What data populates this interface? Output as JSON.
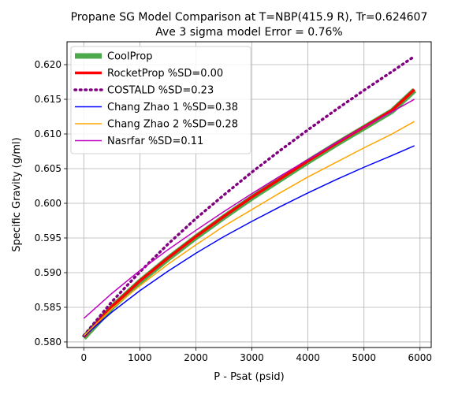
{
  "chart_data": {
    "type": "line",
    "title_line1": "Propane SG Model Comparison at T=NBP(415.9 R), Tr=0.624607",
    "title_line2": "Ave 3 sigma model Error = 0.76%",
    "xlabel": "P - Psat (psid)",
    "ylabel": "Specific Gravity (g/ml)",
    "xlim": [
      -300,
      6200
    ],
    "ylim": [
      0.5792,
      0.6233
    ],
    "xticks": [
      0,
      1000,
      2000,
      3000,
      4000,
      5000,
      6000
    ],
    "yticks": [
      0.58,
      0.585,
      0.59,
      0.595,
      0.6,
      0.605,
      0.61,
      0.615,
      0.62
    ],
    "ytick_labels": [
      "0.580",
      "0.585",
      "0.590",
      "0.595",
      "0.600",
      "0.605",
      "0.610",
      "0.615",
      "0.620"
    ],
    "grid": true,
    "legend_position": "top-left",
    "x": [
      0,
      500,
      1000,
      1500,
      2000,
      2500,
      3000,
      3500,
      4000,
      4500,
      5000,
      5500,
      5900
    ],
    "series": [
      {
        "name": "CoolProp",
        "color": "#4caa4c",
        "style": "solid-thick",
        "values": [
          0.5806,
          0.585,
          0.5887,
          0.592,
          0.5951,
          0.598,
          0.6008,
          0.6034,
          0.606,
          0.6085,
          0.6109,
          0.6133,
          0.6163
        ]
      },
      {
        "name": "RocketProp %SD=0.00",
        "color": "#ff0000",
        "style": "solid-medium",
        "values": [
          0.5807,
          0.5851,
          0.5888,
          0.5921,
          0.5952,
          0.5981,
          0.6009,
          0.6035,
          0.6061,
          0.6086,
          0.611,
          0.6134,
          0.6164
        ]
      },
      {
        "name": "COSTALD %SD=0.23",
        "color": "#800080",
        "style": "dotted",
        "values": [
          0.5809,
          0.5858,
          0.5901,
          0.5941,
          0.5978,
          0.6012,
          0.6045,
          0.6076,
          0.6106,
          0.6135,
          0.6163,
          0.619,
          0.6212
        ]
      },
      {
        "name": "Chang Zhao 1 %SD=0.38",
        "color": "#0000ff",
        "style": "solid",
        "values": [
          0.5808,
          0.5843,
          0.5874,
          0.5902,
          0.5928,
          0.5952,
          0.5974,
          0.5995,
          0.6015,
          0.6034,
          0.6052,
          0.6069,
          0.6083
        ]
      },
      {
        "name": "Chang Zhao 2 %SD=0.28",
        "color": "#ffa500",
        "style": "solid",
        "values": [
          0.5809,
          0.5848,
          0.5881,
          0.5912,
          0.594,
          0.5967,
          0.5991,
          0.6015,
          0.6038,
          0.6059,
          0.608,
          0.61,
          0.6118
        ]
      },
      {
        "name": "Nasrfar %SD=0.11",
        "color": "#bf00bf",
        "style": "solid",
        "values": [
          0.5834,
          0.587,
          0.5903,
          0.5933,
          0.5961,
          0.5988,
          0.6014,
          0.6039,
          0.6063,
          0.6087,
          0.611,
          0.6132,
          0.615
        ]
      }
    ]
  }
}
